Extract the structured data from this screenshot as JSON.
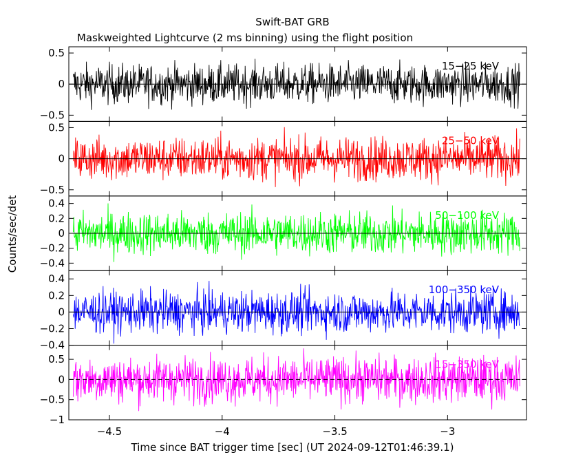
{
  "chart_data": {
    "type": "line",
    "title": "Swift-BAT GRB",
    "subtitle": "Maskweighted Lightcurve (2 ms binning) using the flight position",
    "xlabel": "Time since BAT trigger time [sec] (UT 2024-09-12T01:46:39.1)",
    "ylabel": "Counts/sec/det",
    "xlim": [
      -4.68,
      -2.65
    ],
    "data_x_range": [
      -4.66,
      -2.68
    ],
    "bin_width_sec": 0.002,
    "x_ticks": [
      -4.5,
      -4,
      -3.5,
      -3
    ],
    "x_tick_labels": [
      "−4.5",
      "−4",
      "−3.5",
      "−3"
    ],
    "grid": false,
    "panels": [
      {
        "band": "15−25 keV",
        "color": "#000000",
        "ylim": [
          -0.6,
          0.6
        ],
        "y_ticks": [
          0.5,
          0,
          -0.5
        ],
        "y_tick_labels": [
          "0.5",
          "0",
          "−0.5"
        ],
        "amplitude": 0.5,
        "mean": 0,
        "zero_line_style": "solid"
      },
      {
        "band": "25−50 keV",
        "color": "#ff0000",
        "ylim": [
          -0.6,
          0.6
        ],
        "y_ticks": [
          0.5,
          0,
          -0.5
        ],
        "y_tick_labels": [
          "0.5",
          "0",
          "−0.5"
        ],
        "amplitude": 0.55,
        "mean": 0,
        "zero_line_style": "solid"
      },
      {
        "band": "50−100 keV",
        "color": "#00ff00",
        "ylim": [
          -0.5,
          0.5
        ],
        "y_ticks": [
          0.4,
          0.2,
          0,
          -0.2,
          -0.4
        ],
        "y_tick_labels": [
          "0.4",
          "0.2",
          "0",
          "−0.2",
          "−0.4"
        ],
        "amplitude": 0.45,
        "mean": 0,
        "zero_line_style": "solid"
      },
      {
        "band": "100−350 keV",
        "color": "#0000ff",
        "ylim": [
          -0.4,
          0.5
        ],
        "y_ticks": [
          0.4,
          0.2,
          0,
          -0.2,
          -0.4
        ],
        "y_tick_labels": [
          "0.4",
          "0.2",
          "0",
          "−0.2",
          "−0.4"
        ],
        "amplitude": 0.4,
        "mean": 0,
        "zero_line_style": "solid"
      },
      {
        "band": "15−350 keV",
        "color": "#ff00ff",
        "ylim": [
          -1,
          0.85
        ],
        "y_ticks": [
          0.5,
          0,
          -0.5,
          -1
        ],
        "y_tick_labels": [
          "0.5",
          "0",
          "−0.5",
          "−1"
        ],
        "amplitude": 0.9,
        "mean": 0,
        "zero_line_style": "dashed"
      }
    ]
  }
}
